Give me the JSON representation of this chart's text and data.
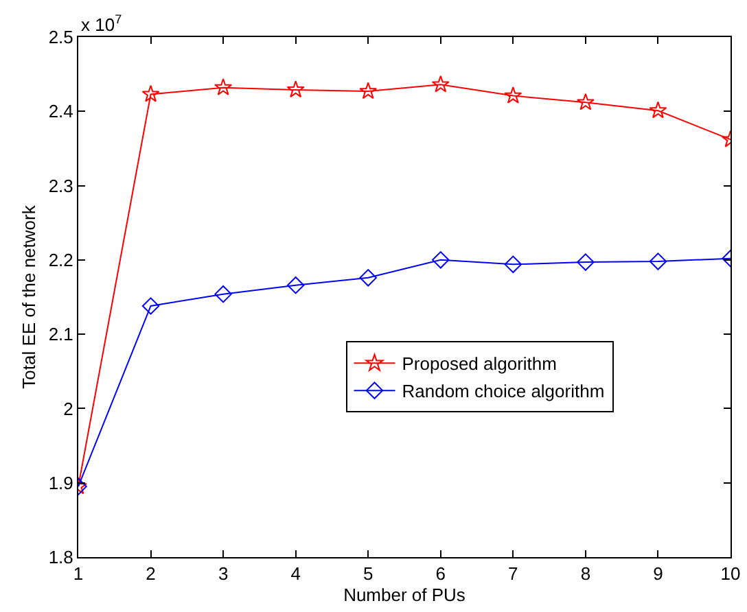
{
  "chart_data": {
    "type": "line",
    "xlabel": "Number of PUs",
    "ylabel": "Total EE of the network",
    "annotations": [
      "x 10$^{7}$"
    ],
    "x": [
      1,
      2,
      3,
      4,
      5,
      6,
      7,
      8,
      9,
      10
    ],
    "series": [
      {
        "name": "Proposed algorithm",
        "color": "#ff0000",
        "marker": "star",
        "values": [
          1.895,
          2.423,
          2.432,
          2.429,
          2.427,
          2.436,
          2.421,
          2.412,
          2.401,
          2.362
        ]
      },
      {
        "name": "Random choice algorithm",
        "color": "#0000ff",
        "marker": "diamond",
        "values": [
          1.895,
          2.138,
          2.154,
          2.166,
          2.176,
          2.2,
          2.194,
          2.197,
          2.198,
          2.202
        ]
      }
    ],
    "xlim": [
      1,
      10
    ],
    "xticks": [
      1,
      2,
      3,
      4,
      5,
      6,
      7,
      8,
      9,
      10
    ],
    "ylim": [
      1.8,
      2.5
    ],
    "yticks": [
      {
        "value": 1.8,
        "label": "1.8"
      },
      {
        "value": 1.9,
        "label": "1.9"
      },
      {
        "value": 2,
        "label": "2"
      },
      {
        "value": 2.1,
        "label": "2.1"
      },
      {
        "value": 2.2,
        "label": "2.2"
      },
      {
        "value": 2.3,
        "label": "2.3"
      },
      {
        "value": 2.4,
        "label": "2.4"
      },
      {
        "value": 2.5,
        "label": "2.5"
      }
    ],
    "grid": false,
    "legend": "right",
    "line_style": "solid"
  }
}
